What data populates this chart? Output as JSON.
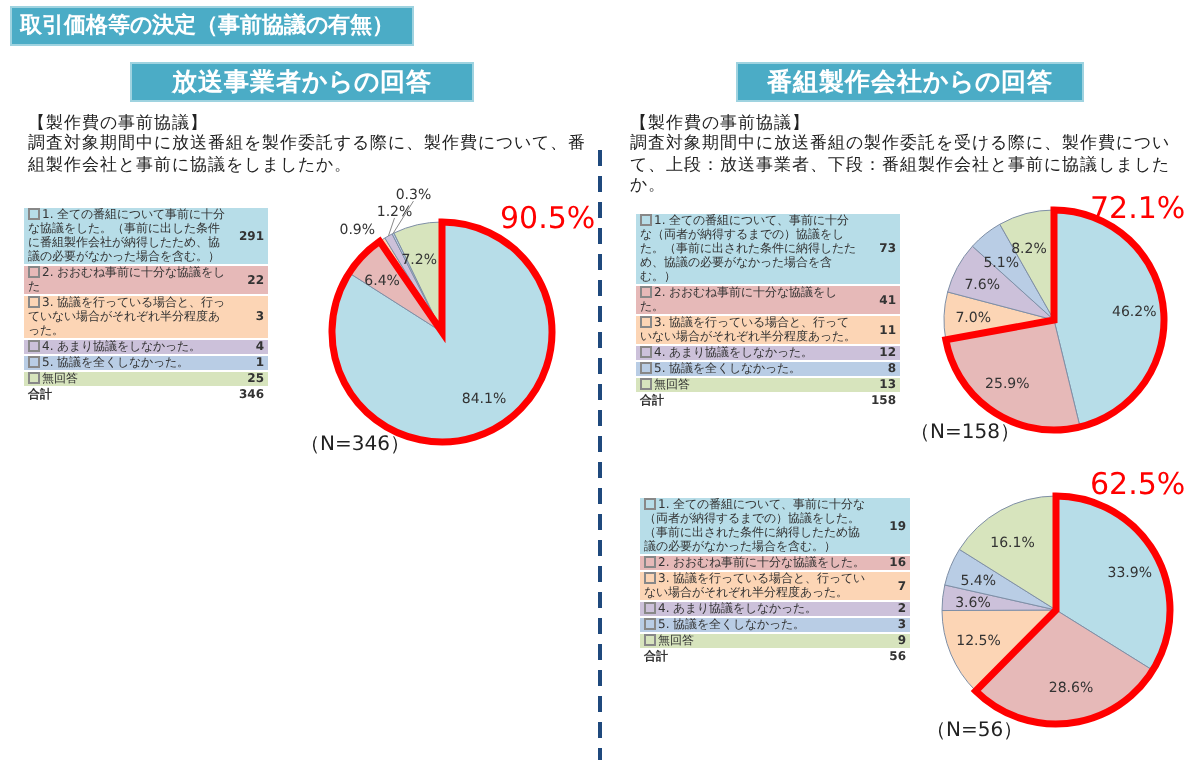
{
  "chart_data": [
    {
      "type": "pie",
      "legend": "left",
      "title": "放送事業者からの回答",
      "subtitle": "【製作費の事前協議】",
      "categories": [
        "1. 全ての番組について事前に十分な協議をした。（事前に出した条件に番組製作会社が納得したため、協議の必要がなかった場合を含む。）",
        "2. おおむね事前に十分な協議をした",
        "3. 協議を行っている場合と、行っていない場合がそれぞれ半分程度あった。",
        "4. あまり協議をしなかった。",
        "5. 協議を全くしなかった。",
        "無回答"
      ],
      "values": [
        84.1,
        6.4,
        0.9,
        1.2,
        0.3,
        7.2
      ],
      "value_labels": [
        "84.1%",
        "6.4%",
        "0.9%",
        "1.2%",
        "0.3%",
        "7.2%"
      ],
      "colors": [
        "#b7dde8",
        "#e6b9b8",
        "#fcd5b5",
        "#ccc1da",
        "#b9cde5",
        "#d7e4bd"
      ],
      "annotations": [
        "取引価格等の決定（事前協議の有無）",
        "調査対象期間中に放送番組を製作委託する際に、製作費について、番組製作会社と事前に協議をしましたか。",
        "291",
        "22",
        "3",
        "4",
        "1",
        "25",
        "合計",
        "346",
        "（N=346）",
        "90.5%"
      ]
    },
    {
      "type": "pie",
      "legend": "left",
      "title": "番組製作会社からの回答",
      "subtitle": "【製作費の事前協議】",
      "categories": [
        "1. 全ての番組について、事前に十分な（両者が納得するまでの）協議をした。（事前に出された条件に納得したため、協議の必要がなかった場合を含む。）",
        "2. おおむね事前に十分な協議をした。",
        "3. 協議を行っている場合と、行っていない場合がそれぞれ半分程度あった。",
        "4. あまり協議をしなかった。",
        "5. 協議を全くしなかった。",
        "無回答"
      ],
      "values": [
        46.2,
        25.9,
        7.0,
        7.6,
        5.1,
        8.2
      ],
      "value_labels": [
        "46.2%",
        "25.9%",
        "7.0%",
        "7.6%",
        "5.1%",
        "8.2%"
      ],
      "colors": [
        "#b7dde8",
        "#e6b9b8",
        "#fcd5b5",
        "#ccc1da",
        "#b9cde5",
        "#d7e4bd"
      ],
      "annotations": [
        "調査対象期間中に放送番組の製作委託を受ける際に、製作費について、上段：放送事業者、下段：番組製作会社と事前に協議しましたか。",
        "73",
        "41",
        "11",
        "12",
        "8",
        "13",
        "合計",
        "158",
        "（N=158）",
        "72.1%"
      ]
    },
    {
      "type": "pie",
      "legend": "left",
      "categories": [
        "1. 全ての番組について、事前に十分な（両者が納得するまでの）協議をした。（事前に出された条件に納得したため協議の必要がなかった場合を含む。）",
        "2. おおむね事前に十分な協議をした。",
        "3. 協議を行っている場合と、行っていない場合がそれぞれ半分程度あった。",
        "4. あまり協議をしなかった。",
        "5. 協議を全くしなかった。",
        "無回答"
      ],
      "values": [
        33.9,
        28.6,
        12.5,
        3.6,
        5.4,
        16.1
      ],
      "value_labels": [
        "33.9%",
        "28.6%",
        "12.5%",
        "3.6%",
        "5.4%",
        "16.1%"
      ],
      "colors": [
        "#b7dde8",
        "#e6b9b8",
        "#fcd5b5",
        "#ccc1da",
        "#b9cde5",
        "#d7e4bd"
      ],
      "annotations": [
        "19",
        "16",
        "7",
        "2",
        "3",
        "9",
        "合計",
        "56",
        "（N=56）",
        "62.5%"
      ]
    }
  ]
}
